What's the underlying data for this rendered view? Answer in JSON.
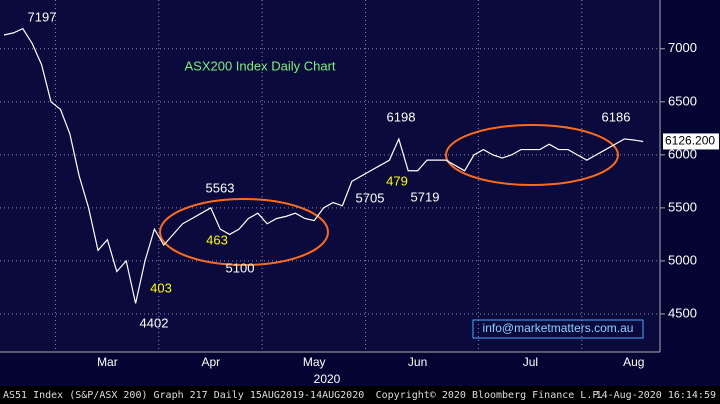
{
  "chart_data": {
    "type": "line",
    "title": "ASX200 Index Daily Chart",
    "categories": [
      null,
      null,
      null,
      null,
      null,
      null,
      null,
      null,
      null,
      null,
      null,
      "Mar",
      null,
      null,
      null,
      null,
      null,
      null,
      null,
      null,
      null,
      null,
      "Apr",
      null,
      null,
      null,
      null,
      null,
      null,
      null,
      null,
      null,
      null,
      "May",
      null,
      null,
      null,
      null,
      null,
      null,
      null,
      null,
      null,
      null,
      "Jun",
      null,
      null,
      null,
      null,
      null,
      null,
      null,
      null,
      null,
      null,
      null,
      "Jul",
      null,
      null,
      null,
      null,
      null,
      null,
      null,
      null,
      null,
      null,
      "Aug",
      null
    ],
    "series": [
      {
        "name": "AS51 Index",
        "color": "#ffffff",
        "values": [
          7130,
          7150,
          7190,
          7050,
          6850,
          6500,
          6430,
          6200,
          5800,
          5500,
          5100,
          5200,
          4900,
          5000,
          4600,
          5000,
          5300,
          5150,
          5250,
          5350,
          5400,
          5450,
          5500,
          5300,
          5250,
          5300,
          5400,
          5450,
          5350,
          5400,
          5420,
          5450,
          5400,
          5380,
          5500,
          5550,
          5520,
          5750,
          5800,
          5850,
          5900,
          5950,
          6150,
          5850,
          5850,
          5950,
          5950,
          5950,
          5900,
          5850,
          6000,
          6050,
          6000,
          5970,
          6000,
          6050,
          6050,
          6050,
          6100,
          6050,
          6050,
          6000,
          5950,
          6000,
          6050,
          6100,
          6150,
          6140,
          6126
        ]
      }
    ],
    "year_label": "2020",
    "ylim": [
      4160,
      7460
    ],
    "yticks": [
      4500,
      5000,
      5500,
      6000,
      6500,
      7000
    ],
    "grid": true,
    "last_price": {
      "value": 6126.2,
      "label": "6126.200"
    },
    "annotations": [
      {
        "text": "7197",
        "color": "#ffffff"
      },
      {
        "text": "4402",
        "color": "#ffffff"
      },
      {
        "text": "403",
        "color": "#ffff00"
      },
      {
        "text": "5563",
        "color": "#ffffff"
      },
      {
        "text": "463",
        "color": "#ffff00"
      },
      {
        "text": "5100",
        "color": "#ffffff"
      },
      {
        "text": "5705",
        "color": "#ffffff"
      },
      {
        "text": "6198",
        "color": "#ffffff"
      },
      {
        "text": "479",
        "color": "#ffff00"
      },
      {
        "text": "5719",
        "color": "#ffffff"
      },
      {
        "text": "6186",
        "color": "#ffffff"
      }
    ],
    "watermark": "info@marketmatters.com.au",
    "footer": {
      "left": "AS51 Index (S&P/ASX 200) Graph 217  Daily 15AUG2019-14AUG2020",
      "center": "Copyright© 2020 Bloomberg Finance L.P.",
      "right": "14-Aug-2020 16:14:59"
    }
  }
}
